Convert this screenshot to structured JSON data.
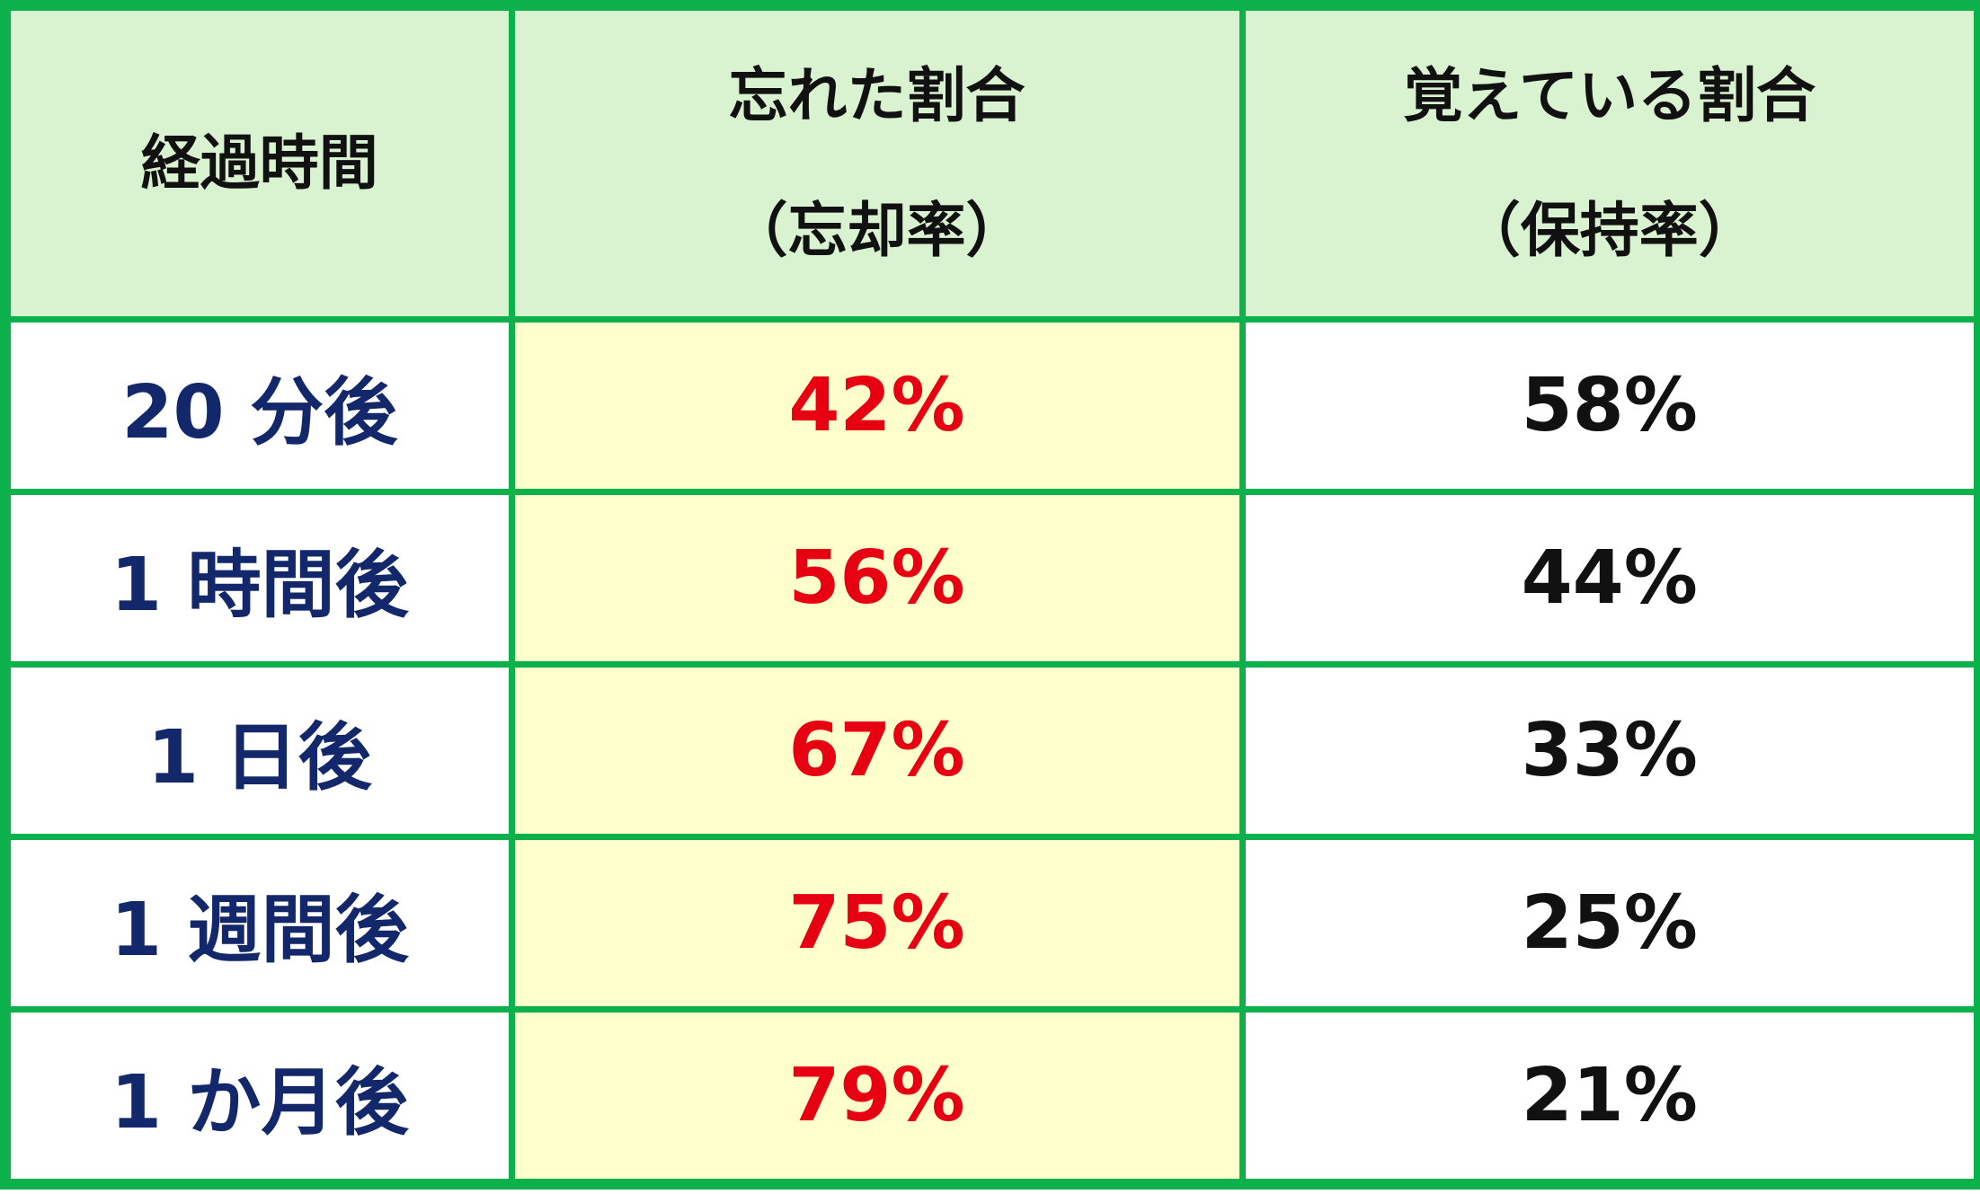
{
  "table": {
    "header": [
      [
        "経過時間"
      ],
      [
        "忘れた割合",
        "（忘却率）"
      ],
      [
        "覚えている割合",
        "（保持率）"
      ]
    ],
    "rows": [
      [
        "20 分後",
        "42%",
        "58%"
      ],
      [
        "1 時間後",
        "56%",
        "44%"
      ],
      [
        "1 日後",
        "67%",
        "33%"
      ],
      [
        "1 週間後",
        "75%",
        "25%"
      ],
      [
        "1 か月後",
        "79%",
        "21%"
      ]
    ]
  }
}
